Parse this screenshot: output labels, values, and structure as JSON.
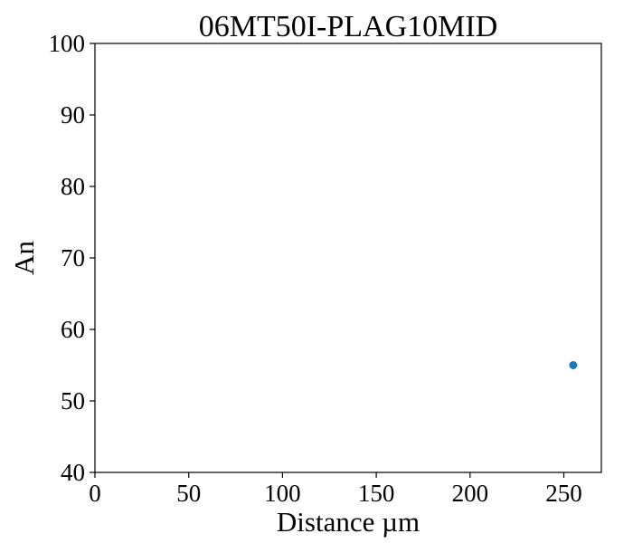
{
  "chart_data": {
    "type": "scatter",
    "title": "06MT50I-PLAG10MID",
    "xlabel": "Distance µm",
    "ylabel": "An",
    "xlim": [
      0,
      270
    ],
    "ylim": [
      40,
      100
    ],
    "x_ticks": [
      0,
      50,
      100,
      150,
      200,
      250
    ],
    "y_ticks": [
      40,
      50,
      60,
      70,
      80,
      90,
      100
    ],
    "grid": false,
    "legend": "none",
    "series": [
      {
        "color": "#1f77b4",
        "points": [
          {
            "x": 255,
            "y": 55
          }
        ]
      }
    ]
  }
}
